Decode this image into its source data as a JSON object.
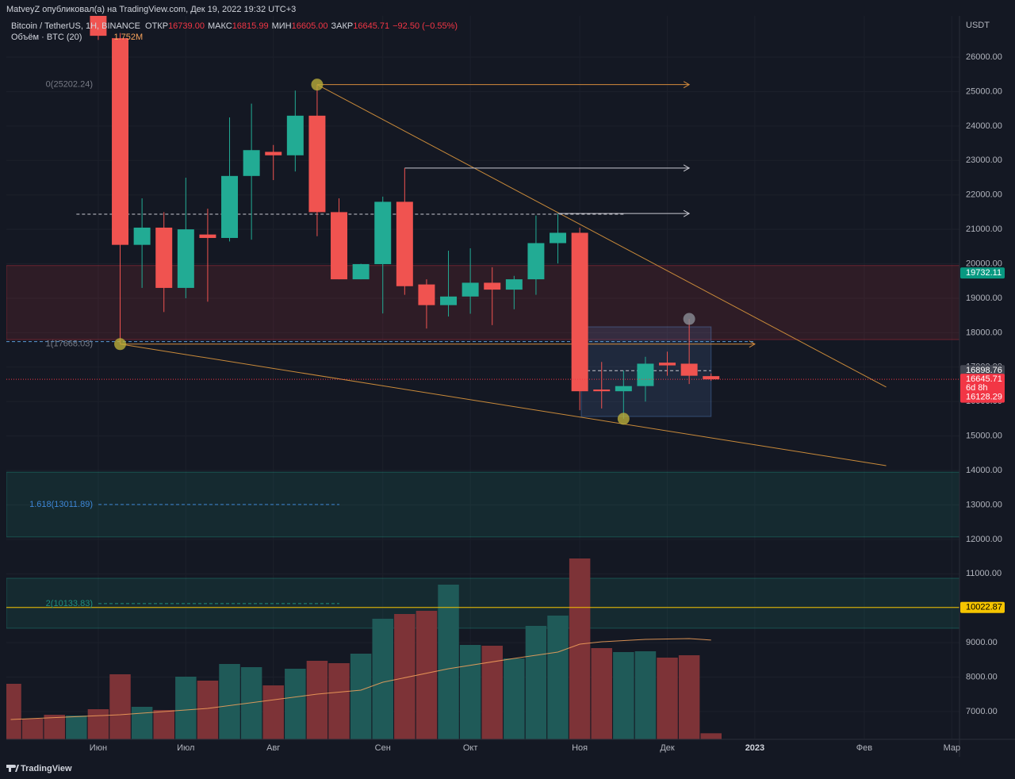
{
  "header": {
    "publisher": "MatveyZ опубликовал(а) на TradingView.com, Дек 19, 2022 19:32 UTC+3",
    "symbol": "Bitcoin / TetherUS, 1Н, BINANCE",
    "ohlc": [
      {
        "key": "ОТКР",
        "value": "16739.00"
      },
      {
        "key": "МАКС",
        "value": "16815.99"
      },
      {
        "key": "МИН",
        "value": "16605.00"
      },
      {
        "key": "ЗАКР",
        "value": "16645.71"
      }
    ],
    "change": "−92.50 (−0.55%)",
    "volume_label": "Объём · BTC (20)",
    "volume_ma": "1.752M"
  },
  "footer": {
    "brand": "TradingView"
  },
  "chart_data": {
    "type": "candlestick",
    "axis_title": "USDT",
    "up_color": "#22ab94",
    "down_color": "#f05350",
    "grid": true,
    "xlim": [
      -4.2,
      39.35
    ],
    "xticks": [
      {
        "value": 0,
        "label": "Июн"
      },
      {
        "value": 4,
        "label": "Июл"
      },
      {
        "value": 8,
        "label": "Авг"
      },
      {
        "value": 13,
        "label": "Сен"
      },
      {
        "value": 17,
        "label": "Окт"
      },
      {
        "value": 22,
        "label": "Ноя"
      },
      {
        "value": 26,
        "label": "Дек"
      },
      {
        "value": 30,
        "label": "2023"
      },
      {
        "value": 35,
        "label": "Фев"
      },
      {
        "value": 39,
        "label": "Мар"
      }
    ],
    "ylim": [
      6194,
      27198
    ],
    "yticks": [
      {
        "value": 7000,
        "label": "7000.00"
      },
      {
        "value": 8000,
        "label": "8000.00"
      },
      {
        "value": 9000,
        "label": "9000.00"
      },
      {
        "value": 10000,
        "label": "10000.00"
      },
      {
        "value": 11000,
        "label": "11000.00"
      },
      {
        "value": 12000,
        "label": "12000.00"
      },
      {
        "value": 13000,
        "label": "13000.00"
      },
      {
        "value": 14000,
        "label": "14000.00"
      },
      {
        "value": 15000,
        "label": "15000.00"
      },
      {
        "value": 16000,
        "label": "16000.00"
      },
      {
        "value": 17000,
        "label": "17000.00"
      },
      {
        "value": 18000,
        "label": "18000.00"
      },
      {
        "value": 19000,
        "label": "19000.00"
      },
      {
        "value": 20000,
        "label": "20000.00"
      },
      {
        "value": 21000,
        "label": "21000.00"
      },
      {
        "value": 22000,
        "label": "22000.00"
      },
      {
        "value": 23000,
        "label": "23000.00"
      },
      {
        "value": 24000,
        "label": "24000.00"
      },
      {
        "value": 25000,
        "label": "25000.00"
      },
      {
        "value": 26000,
        "label": "26000.00"
      }
    ],
    "y2lim": [
      0,
      12768000
    ],
    "x": [
      0,
      1,
      2,
      3,
      4,
      5,
      6,
      7,
      8,
      9,
      10,
      11,
      12,
      13,
      14,
      15,
      16,
      17,
      18,
      19,
      20,
      21,
      22,
      23,
      24,
      25,
      26,
      27,
      28
    ],
    "open": [
      27500,
      26550,
      20550,
      21050,
      19300,
      20850,
      20750,
      22550,
      23250,
      23150,
      24300,
      21500,
      19550,
      19990,
      21800,
      19400,
      18800,
      19050,
      19450,
      19250,
      19550,
      20600,
      20900,
      16350,
      16300,
      16450,
      17130,
      17100,
      16739
    ],
    "high": [
      27700,
      26700,
      21900,
      21500,
      22500,
      21600,
      24250,
      24650,
      23450,
      25030,
      25202.24,
      21900,
      20000,
      21950,
      22780,
      19550,
      20380,
      20450,
      19900,
      19650,
      21400,
      21450,
      21050,
      17150,
      16900,
      17300,
      17450,
      18400,
      16815.99
    ],
    "low": [
      26500,
      17668.03,
      19300,
      18600,
      19000,
      18900,
      20650,
      20700,
      22430,
      22680,
      20800,
      19550,
      19550,
      18560,
      19100,
      18120,
      18470,
      18550,
      18220,
      18680,
      19100,
      20010,
      15750,
      15800,
      15500,
      16000,
      16750,
      16510,
      16605
    ],
    "close": [
      26620,
      20550,
      21050,
      19300,
      21000,
      20750,
      22550,
      23300,
      23150,
      24300,
      21500,
      19550,
      19990,
      21800,
      19350,
      18800,
      19050,
      19450,
      19250,
      19550,
      20600,
      20900,
      16300,
      16300,
      16450,
      17100,
      17050,
      16750,
      16645.71
    ],
    "volume": {
      "x": [
        -4,
        -3,
        -2,
        -1,
        0,
        1,
        2,
        3,
        4,
        5,
        6,
        7,
        8,
        9,
        10,
        11,
        12,
        13,
        14,
        15,
        16,
        17,
        18,
        19,
        20,
        21,
        22,
        23,
        24,
        25,
        26,
        27,
        28
      ],
      "values": [
        980000,
        364000,
        434000,
        420000,
        532000,
        1148000,
        574000,
        518000,
        1106000,
        1036000,
        1330000,
        1274000,
        952000,
        1246000,
        1386000,
        1344000,
        1512000,
        2128000,
        2212000,
        2268000,
        2730000,
        1666000,
        1652000,
        1428000,
        2002000,
        2184000,
        3192000,
        1610000,
        1540000,
        1554000,
        1442000,
        1484000,
        107000
      ],
      "colors": [
        "#7d3337",
        "#7d3337",
        "#7d3337",
        "#1f5a58",
        "#7d3337",
        "#7d3337",
        "#1f5a58",
        "#7d3337",
        "#1f5a58",
        "#7d3337",
        "#1f5a58",
        "#1f5a58",
        "#7d3337",
        "#1f5a58",
        "#7d3337",
        "#7d3337",
        "#1f5a58",
        "#1f5a58",
        "#7d3337",
        "#7d3337",
        "#1f5a58",
        "#1f5a58",
        "#7d3337",
        "#1f5a58",
        "#1f5a58",
        "#1f5a58",
        "#7d3337",
        "#7d3337",
        "#1f5a58",
        "#1f5a58",
        "#7d3337",
        "#7d3337",
        "#7d3337"
      ]
    },
    "volume_ma": {
      "color": "#f7a35c",
      "x": [
        -4,
        1,
        5,
        10,
        12,
        13,
        16,
        19,
        21,
        22,
        23,
        25,
        27,
        28
      ],
      "values": [
        350000,
        434000,
        546000,
        798000,
        868000,
        1008000,
        1246000,
        1428000,
        1540000,
        1680000,
        1722000,
        1764000,
        1778000,
        1752000
      ]
    },
    "zones": [
      {
        "y": [
          17800,
          19950
        ],
        "color": "#f23645"
      },
      {
        "y": [
          12070,
          13950
        ],
        "color": "#22ab94"
      },
      {
        "y": [
          9420,
          10870
        ],
        "color": "#22ab94"
      }
    ],
    "box": {
      "x": [
        22.07,
        28
      ],
      "y": [
        15567,
        18170
      ],
      "color": "#5b8fd5"
    },
    "fib_levels": [
      {
        "label": "0(25202.24)",
        "value": 25202.24,
        "color": "#787b86"
      },
      {
        "label": "1(17668.03)",
        "value": 17668.03,
        "color": "#787b86"
      },
      {
        "label": "1.618(13011.89)",
        "value": 13011.89,
        "color": "#3d86d6",
        "dash": true
      },
      {
        "label": "2(10133.83)",
        "value": 10133.83,
        "color": "#1f8f7e",
        "dash": true
      }
    ],
    "trendlines": [
      {
        "x": [
          10,
          36
        ],
        "y": [
          25202.24,
          16420
        ],
        "color": "#c98a3a"
      },
      {
        "x": [
          1,
          36
        ],
        "y": [
          17668.03,
          14140
        ],
        "color": "#c98a3a"
      }
    ],
    "rays": [
      {
        "x": [
          10,
          27
        ],
        "y": 25202.24,
        "color": "#d48a3c",
        "arrow": true
      },
      {
        "x": [
          14,
          27
        ],
        "y": 22780,
        "color": "#c8c8d0",
        "arrow": true
      },
      {
        "x": [
          -1,
          24
        ],
        "y": 21440,
        "color": "#c8c8d0",
        "dash": true
      },
      {
        "x": [
          21,
          27
        ],
        "y": 21460,
        "color": "#c8c8d0",
        "arrow": true
      },
      {
        "x": [
          1,
          30
        ],
        "y": 17668.03,
        "color": "#d48a3c",
        "arrow": true
      },
      {
        "x": [
          -4.2,
          30
        ],
        "y": 17740,
        "color": "#5b9bd5",
        "dash": true
      },
      {
        "x": [
          22.07,
          28
        ],
        "y": 16898.76,
        "color": "#c8c8d0",
        "dash": true
      }
    ],
    "markers": [
      {
        "x": 10,
        "y": 25202.24,
        "color": "#b8ad3a"
      },
      {
        "x": 1,
        "y": 17668.03,
        "color": "#b8ad3a"
      },
      {
        "x": 24,
        "y": 15500,
        "color": "#b8ad3a"
      },
      {
        "x": 27,
        "y": 18400,
        "color": "#8a8d96"
      }
    ],
    "price_labels": [
      {
        "value": 19732.11,
        "color": "#089981"
      },
      {
        "value": 16898.76,
        "color": "#434651"
      },
      {
        "value": 16645.71,
        "color": "#f23645",
        "line": "dotted",
        "countdown": "6d 8h"
      },
      {
        "value": 16128.29,
        "color": "#f23645"
      },
      {
        "value": 10022.87,
        "color": "#f5c400",
        "line": "solid",
        "text_color": "#000000"
      }
    ]
  }
}
